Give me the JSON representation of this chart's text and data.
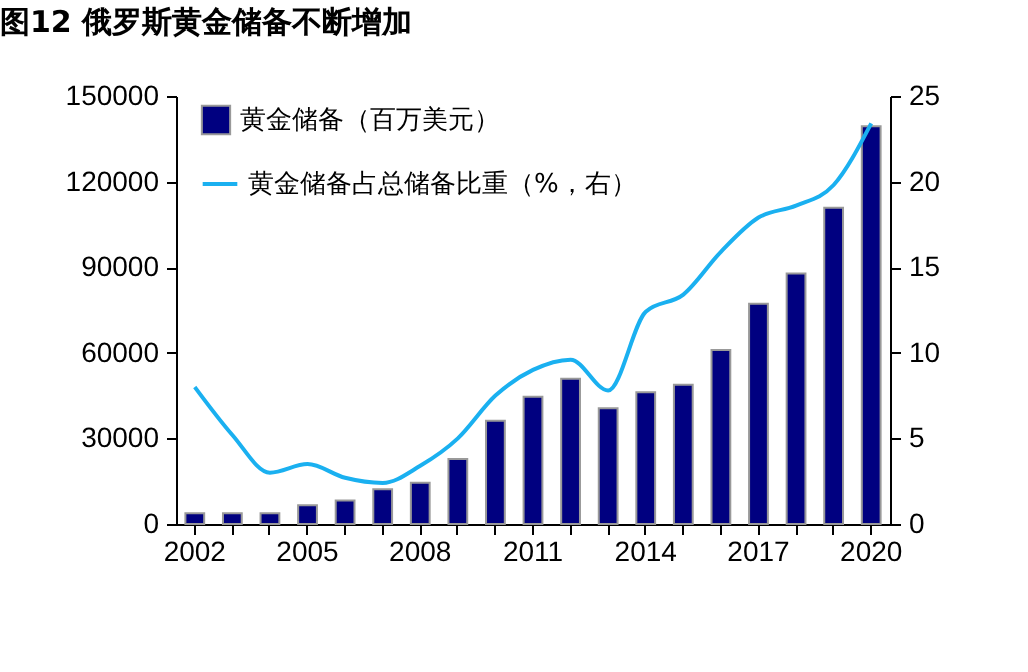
{
  "chart_data": {
    "type": "bar",
    "title": "图12 俄罗斯黄金储备不断增加",
    "categories": [
      "2002",
      null,
      null,
      "2005",
      null,
      null,
      "2008",
      null,
      null,
      "2011",
      null,
      null,
      "2014",
      null,
      null,
      "2017",
      null,
      null,
      "2020"
    ],
    "series": [
      {
        "name": "黄金储备（百万美元）",
        "color": "#000080",
        "values": [
          3800,
          3800,
          3800,
          6600,
          8200,
          12200,
          14500,
          22800,
          36200,
          44600,
          50900,
          40600,
          46200,
          48800,
          61000,
          77200,
          87800,
          110800,
          139400
        ]
      },
      {
        "name": "黄金储备占总储备比重（%，右）",
        "type": "line",
        "axis": "y2",
        "color": "#1ab0f0",
        "values": [
          8.0,
          5.2,
          3.0,
          3.5,
          2.7,
          2.4,
          3.4,
          5.0,
          7.5,
          9.0,
          9.6,
          7.8,
          12.4,
          13.4,
          15.9,
          17.9,
          18.6,
          19.8,
          23.4
        ]
      }
    ],
    "ylim": [
      0,
      150000
    ],
    "yticks": [
      0,
      30000,
      60000,
      90000,
      120000,
      150000
    ],
    "y2lim": [
      0,
      25
    ],
    "y2ticks": [
      0,
      5,
      10,
      15,
      20,
      25
    ],
    "legend": "top left",
    "grid": false
  }
}
